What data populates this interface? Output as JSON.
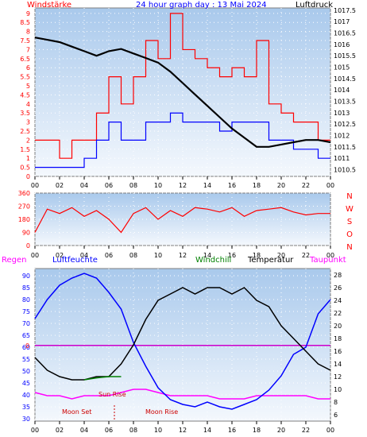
{
  "chart_data": [
    {
      "type": "line",
      "title": "24 hour graph day : 13 Mai 2024",
      "left_axis_label": "Windstärke",
      "right_axis_label": "Luftdruck",
      "x_tick_labels": [
        "00",
        "02",
        "04",
        "06",
        "08",
        "10",
        "12",
        "14",
        "16",
        "18",
        "20",
        "22",
        "00"
      ],
      "left_ticks": [
        "0",
        "0.5",
        "1",
        "1.5",
        "2",
        "2.5",
        "3",
        "3.5",
        "4",
        "4.5",
        "5",
        "5.5",
        "6",
        "6.5",
        "7",
        "7.5",
        "8",
        "8.5",
        "9"
      ],
      "right_ticks": [
        "1010.5",
        "1011",
        "1011.5",
        "1012",
        "1012.5",
        "1013",
        "1013.5",
        "1014",
        "1014.5",
        "1015",
        "1015.5",
        "1016",
        "1016.5",
        "1017",
        "1017.5"
      ],
      "left_ylim": [
        0,
        9.3
      ],
      "right_ylim": [
        1010.2,
        1017.6
      ],
      "pressure_hpa": {
        "x_hours": [
          0,
          1,
          2,
          3,
          4,
          5,
          6,
          7,
          8,
          9,
          10,
          11,
          12,
          13,
          14,
          15,
          16,
          17,
          18,
          19,
          20,
          21,
          22,
          23,
          24
        ],
        "values": [
          1016.3,
          1016.2,
          1016.1,
          1015.9,
          1015.7,
          1015.5,
          1015.7,
          1015.8,
          1015.6,
          1015.4,
          1015.2,
          1014.8,
          1014.3,
          1013.8,
          1013.3,
          1012.8,
          1012.3,
          1011.9,
          1011.5,
          1011.5,
          1011.6,
          1011.7,
          1011.8,
          1011.8,
          1011.7
        ]
      },
      "wind_gust_red": {
        "x_hours": [
          0,
          1,
          2,
          3,
          4,
          5,
          6,
          7,
          8,
          9,
          10,
          11,
          12,
          13,
          14,
          15,
          16,
          17,
          18,
          19,
          20,
          21,
          22,
          23,
          24
        ],
        "values": [
          2,
          2,
          1,
          2,
          2,
          3.5,
          5.5,
          4,
          5.5,
          7.5,
          6.5,
          9,
          7,
          6.5,
          6,
          5.5,
          6,
          5.5,
          7.5,
          4,
          3.5,
          3,
          3,
          2,
          2
        ]
      },
      "wind_avg_blue": {
        "x_hours": [
          0,
          1,
          2,
          3,
          4,
          5,
          6,
          7,
          8,
          9,
          10,
          11,
          12,
          13,
          14,
          15,
          16,
          17,
          18,
          19,
          20,
          21,
          22,
          23,
          24
        ],
        "values": [
          0.5,
          0.5,
          0.5,
          0.5,
          1,
          2,
          3,
          2,
          2,
          3,
          3,
          3.5,
          3,
          3,
          3,
          2.5,
          3,
          3,
          3,
          2,
          2,
          1.5,
          1.5,
          1,
          1
        ]
      }
    },
    {
      "type": "line",
      "title": "",
      "right_letters": [
        "N",
        "W",
        "S",
        "O",
        "N"
      ],
      "left_ticks": [
        "0",
        "90",
        "180",
        "270",
        "360"
      ],
      "ylim": [
        0,
        360
      ],
      "x_tick_labels": [
        "00",
        "02",
        "04",
        "06",
        "08",
        "10",
        "12",
        "14",
        "16",
        "18",
        "20",
        "22",
        "00"
      ],
      "wind_direction_deg": {
        "x_hours": [
          0,
          1,
          2,
          3,
          4,
          5,
          6,
          7,
          8,
          9,
          10,
          11,
          12,
          13,
          14,
          15,
          16,
          17,
          18,
          19,
          20,
          21,
          22,
          23,
          24
        ],
        "values": [
          90,
          250,
          220,
          260,
          200,
          240,
          180,
          90,
          220,
          260,
          180,
          240,
          200,
          260,
          250,
          230,
          260,
          200,
          240,
          250,
          260,
          230,
          210,
          220,
          220
        ]
      }
    },
    {
      "type": "line",
      "legend": [
        "Regen",
        "Luftfeuchte",
        "Windchill",
        "Temperatur",
        "Taupunkt"
      ],
      "left_ticks": [
        "30",
        "35",
        "40",
        "45",
        "50",
        "55",
        "60",
        "65",
        "70",
        "75",
        "80",
        "85",
        "90"
      ],
      "right_ticks": [
        "6",
        "8",
        "10",
        "12",
        "14",
        "16",
        "18",
        "20",
        "22",
        "24",
        "26",
        "28"
      ],
      "left_ylim": [
        29,
        93
      ],
      "right_ylim": [
        5,
        29
      ],
      "rain_label": "0",
      "x_tick_labels": [
        "00",
        "02",
        "04",
        "06",
        "08",
        "10",
        "12",
        "14",
        "16",
        "18",
        "20",
        "22",
        "00"
      ],
      "annotations": [
        "Sun Rise",
        "Moon Set",
        "Moon Rise"
      ],
      "humidity_pct": {
        "x_hours": [
          0,
          1,
          2,
          3,
          4,
          5,
          6,
          7,
          8,
          9,
          10,
          11,
          12,
          13,
          14,
          15,
          16,
          17,
          18,
          19,
          20,
          21,
          22,
          23,
          24
        ],
        "values": [
          72,
          80,
          86,
          89,
          91,
          89,
          83,
          76,
          62,
          52,
          43,
          38,
          36,
          35,
          37,
          35,
          34,
          36,
          38,
          42,
          48,
          57,
          60,
          74,
          80
        ]
      },
      "temperature_c": {
        "x_hours": [
          0,
          1,
          2,
          3,
          4,
          5,
          6,
          7,
          8,
          9,
          10,
          11,
          12,
          13,
          14,
          15,
          16,
          17,
          18,
          19,
          20,
          21,
          22,
          23,
          24
        ],
        "values": [
          15,
          13,
          12,
          11.5,
          11.5,
          12,
          12,
          14,
          17,
          21,
          24,
          25,
          26,
          25,
          26,
          26,
          25,
          26,
          24,
          23,
          20,
          18,
          16,
          14,
          13
        ]
      },
      "windchill_c": {
        "x_hours": [
          4,
          5,
          6,
          7
        ],
        "values": [
          11.5,
          11.8,
          12,
          12
        ]
      },
      "dewpoint_c": {
        "x_hours": [
          0,
          1,
          2,
          3,
          4,
          5,
          6,
          7,
          8,
          9,
          10,
          11,
          12,
          13,
          14,
          15,
          16,
          17,
          18,
          19,
          20,
          21,
          22,
          23,
          24
        ],
        "values": [
          9.5,
          9,
          9,
          8.5,
          9,
          9,
          9,
          9.5,
          10,
          10,
          9.5,
          9,
          9,
          9,
          9,
          8.5,
          8.5,
          8.5,
          9,
          9,
          9,
          9,
          9,
          8.5,
          8.5
        ]
      }
    }
  ]
}
